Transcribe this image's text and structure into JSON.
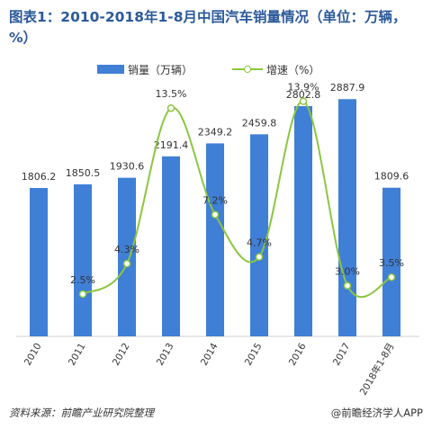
{
  "title": "图表1：2010-2018年1-8月中国汽车销量情况（单位：万辆，%）",
  "source": "资料来源：前瞻产业研究院整理",
  "credit": "@前瞻经济学人APP",
  "colors": {
    "bar": "#3f7fd6",
    "line": "#8cc63f",
    "title": "#2c5a9a"
  },
  "chart_data": {
    "type": "bar",
    "title": "图表1：2010-2018年1-8月中国汽车销量情况（单位：万辆，%）",
    "categories": [
      "2010",
      "2011",
      "2012",
      "2013",
      "2014",
      "2015",
      "2016",
      "2017",
      "2018年1-8月"
    ],
    "legend_position": "top",
    "grid": false,
    "series": [
      {
        "name": "销量（万辆）",
        "type": "bar",
        "values": [
          1806.2,
          1850.5,
          1930.6,
          2191.4,
          2349.2,
          2459.8,
          2802.8,
          2887.9,
          1809.6
        ],
        "labels": [
          "1806.2",
          "1850.5",
          "1930.6",
          "2191.4",
          "2349.2",
          "2459.8",
          "2802.8",
          "2887.9",
          "1809.6"
        ],
        "ylim": [
          0,
          3000
        ]
      },
      {
        "name": "增速（%）",
        "type": "line",
        "smooth": true,
        "values": [
          null,
          2.5,
          4.3,
          13.5,
          7.2,
          4.7,
          13.9,
          3.0,
          3.5
        ],
        "labels": [
          "",
          "2.5%",
          "4.3%",
          "13.5%",
          "7.2%",
          "4.7%",
          "13.9%",
          "3.0%",
          "3.5%"
        ],
        "ylim": [
          0,
          15
        ]
      }
    ]
  }
}
